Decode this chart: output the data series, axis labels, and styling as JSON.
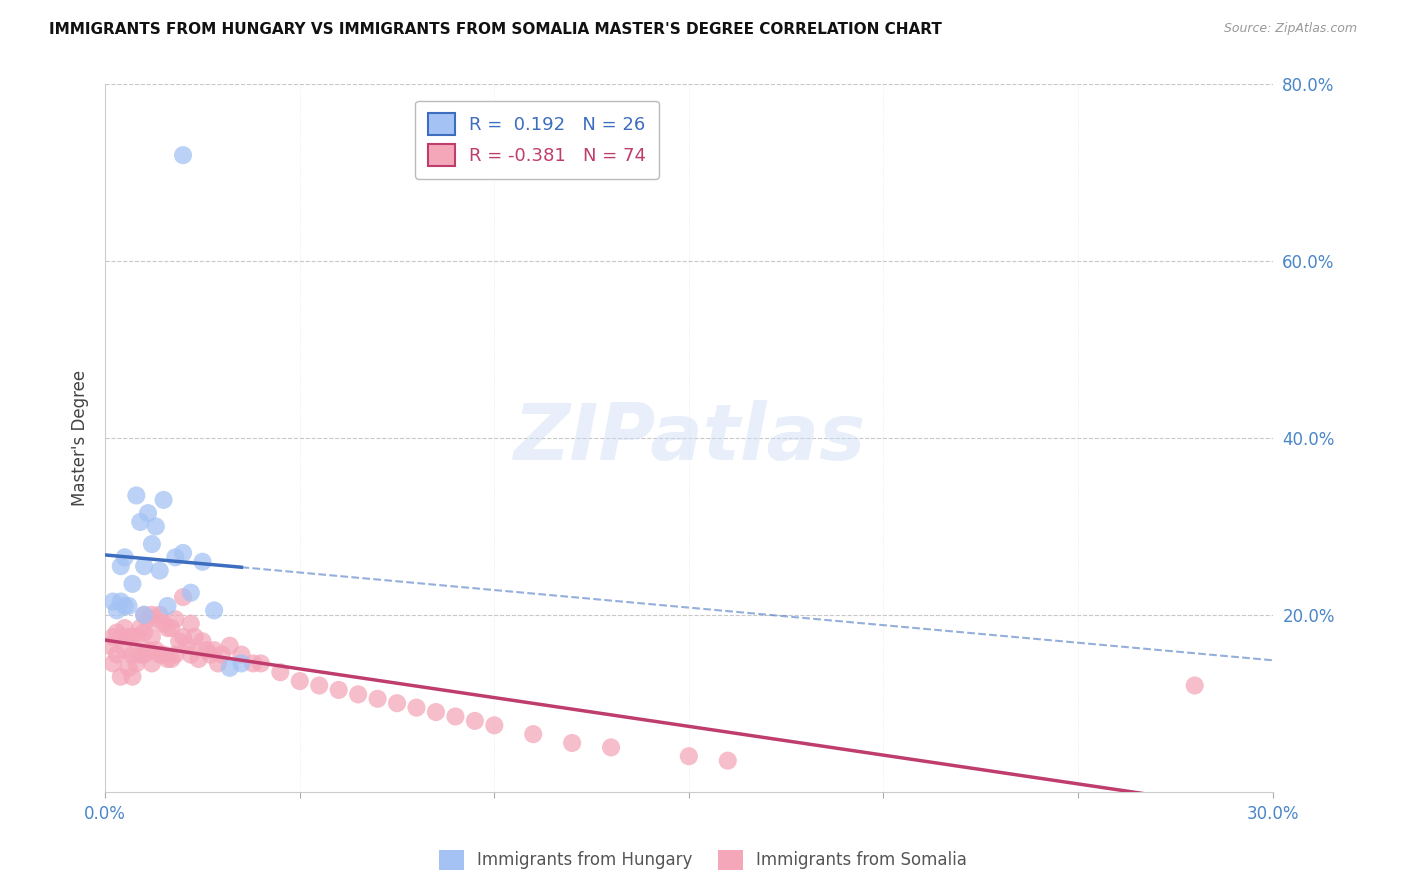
{
  "title": "IMMIGRANTS FROM HUNGARY VS IMMIGRANTS FROM SOMALIA MASTER'S DEGREE CORRELATION CHART",
  "source": "Source: ZipAtlas.com",
  "ylabel": "Master's Degree",
  "xlim": [
    0.0,
    0.3
  ],
  "ylim": [
    0.0,
    0.8
  ],
  "hungary_R": 0.192,
  "hungary_N": 26,
  "somalia_R": -0.381,
  "somalia_N": 74,
  "hungary_color": "#a4c2f4",
  "somalia_color": "#f4a7b9",
  "hungary_line_color": "#3d6dbf",
  "somalia_line_color": "#bf3d6d",
  "background_color": "#ffffff",
  "grid_color": "#c8c8c8",
  "axis_label_color": "#4a86c8",
  "title_fontsize": 11,
  "hungary_x": [
    0.002,
    0.003,
    0.004,
    0.004,
    0.005,
    0.005,
    0.006,
    0.007,
    0.008,
    0.009,
    0.01,
    0.01,
    0.011,
    0.012,
    0.013,
    0.014,
    0.015,
    0.016,
    0.018,
    0.02,
    0.022,
    0.025,
    0.028,
    0.032,
    0.035,
    0.02
  ],
  "hungary_y": [
    0.215,
    0.205,
    0.215,
    0.255,
    0.21,
    0.265,
    0.21,
    0.235,
    0.335,
    0.305,
    0.255,
    0.2,
    0.315,
    0.28,
    0.3,
    0.25,
    0.33,
    0.21,
    0.265,
    0.27,
    0.225,
    0.26,
    0.205,
    0.14,
    0.145,
    0.72
  ],
  "somalia_x": [
    0.001,
    0.002,
    0.002,
    0.003,
    0.003,
    0.004,
    0.004,
    0.005,
    0.005,
    0.006,
    0.006,
    0.007,
    0.007,
    0.007,
    0.008,
    0.008,
    0.009,
    0.009,
    0.01,
    0.01,
    0.01,
    0.011,
    0.011,
    0.012,
    0.012,
    0.012,
    0.013,
    0.013,
    0.014,
    0.014,
    0.015,
    0.015,
    0.016,
    0.016,
    0.017,
    0.017,
    0.018,
    0.018,
    0.019,
    0.02,
    0.02,
    0.021,
    0.022,
    0.022,
    0.023,
    0.024,
    0.025,
    0.026,
    0.027,
    0.028,
    0.029,
    0.03,
    0.032,
    0.035,
    0.038,
    0.04,
    0.045,
    0.05,
    0.055,
    0.06,
    0.065,
    0.07,
    0.075,
    0.08,
    0.085,
    0.09,
    0.095,
    0.1,
    0.11,
    0.12,
    0.13,
    0.15,
    0.16,
    0.28
  ],
  "somalia_y": [
    0.165,
    0.175,
    0.145,
    0.18,
    0.155,
    0.175,
    0.13,
    0.185,
    0.16,
    0.175,
    0.14,
    0.175,
    0.155,
    0.13,
    0.175,
    0.145,
    0.185,
    0.155,
    0.2,
    0.18,
    0.155,
    0.195,
    0.16,
    0.2,
    0.175,
    0.145,
    0.195,
    0.16,
    0.2,
    0.155,
    0.19,
    0.155,
    0.185,
    0.15,
    0.185,
    0.15,
    0.195,
    0.155,
    0.17,
    0.22,
    0.175,
    0.165,
    0.19,
    0.155,
    0.175,
    0.15,
    0.17,
    0.16,
    0.155,
    0.16,
    0.145,
    0.155,
    0.165,
    0.155,
    0.145,
    0.145,
    0.135,
    0.125,
    0.12,
    0.115,
    0.11,
    0.105,
    0.1,
    0.095,
    0.09,
    0.085,
    0.08,
    0.075,
    0.065,
    0.055,
    0.05,
    0.04,
    0.035,
    0.12
  ]
}
